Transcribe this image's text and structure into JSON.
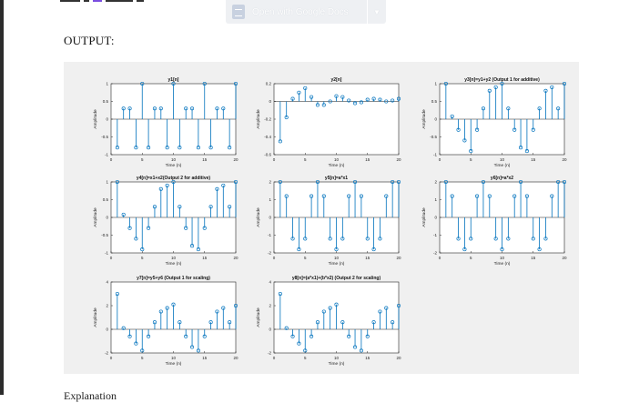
{
  "toolbar": {
    "open_with_label": "Open with Google Docs",
    "docs_icon": "docs-icon",
    "dropdown_icon": "chevron-down-icon"
  },
  "page": {
    "output_heading": "OUTPUT:",
    "bottom_text": "Explanation"
  },
  "chart_data": [
    {
      "type": "stem",
      "title": "y1[n]",
      "xlabel": "Time (n)",
      "ylabel": "Amplitude",
      "xlim": [
        0,
        20
      ],
      "ylim": [
        -1,
        1
      ],
      "xticks": [
        0,
        5,
        10,
        15,
        20
      ],
      "yticks": [
        -1,
        -0.5,
        0,
        0.5,
        1
      ],
      "ytick_labels": [
        "-1",
        "-0.5",
        "0",
        "0.5",
        "1"
      ],
      "x": [
        1,
        2,
        3,
        4,
        5,
        6,
        7,
        8,
        9,
        10,
        11,
        12,
        13,
        14,
        15,
        16,
        17,
        18,
        19,
        20
      ],
      "values": [
        -0.8,
        0.3,
        0.3,
        -0.8,
        1,
        -0.8,
        0.3,
        0.3,
        -0.8,
        1,
        -0.8,
        0.3,
        0.3,
        -0.8,
        1,
        -0.8,
        0.3,
        0.3,
        -0.8,
        1
      ]
    },
    {
      "type": "stem",
      "title": "y2[n]",
      "xlabel": "Time (n)",
      "ylabel": "Amplitude",
      "xlim": [
        0,
        20
      ],
      "ylim": [
        -0.6,
        0.2
      ],
      "xticks": [
        0,
        5,
        10,
        15,
        20
      ],
      "yticks": [
        -0.6,
        -0.4,
        -0.2,
        0,
        0.2
      ],
      "ytick_labels": [
        "-0.6",
        "-0.4",
        "-0.2",
        "0",
        "0.2"
      ],
      "x": [
        1,
        2,
        3,
        4,
        5,
        6,
        7,
        8,
        9,
        10,
        11,
        12,
        13,
        14,
        15,
        16,
        17,
        18,
        19,
        20
      ],
      "values": [
        -0.45,
        -0.18,
        0.03,
        0.1,
        0.15,
        0.05,
        -0.04,
        -0.04,
        0.0,
        0.06,
        0.05,
        0.01,
        -0.02,
        -0.01,
        0.02,
        0.03,
        0.02,
        0.0,
        0.01,
        0.03
      ]
    },
    {
      "type": "stem",
      "title": "y3[n]=y1+y2 (Output 1 for additive)",
      "xlabel": "Time (n)",
      "ylabel": "Amplitude",
      "xlim": [
        0,
        20
      ],
      "ylim": [
        -1,
        1
      ],
      "xticks": [
        0,
        5,
        10,
        15,
        20
      ],
      "yticks": [
        -1,
        -0.5,
        0,
        0.5,
        1
      ],
      "ytick_labels": [
        "-1",
        "-0.5",
        "0",
        "0.5",
        "1"
      ],
      "x": [
        1,
        2,
        3,
        4,
        5,
        6,
        7,
        8,
        9,
        10,
        11,
        12,
        13,
        14,
        15,
        16,
        17,
        18,
        19,
        20
      ],
      "values": [
        1,
        0.08,
        -0.3,
        -0.6,
        -0.9,
        -0.3,
        0.3,
        0.8,
        0.9,
        1,
        0.3,
        -0.3,
        -0.8,
        -0.9,
        -0.3,
        0.3,
        0.8,
        0.9,
        0.3,
        1
      ]
    },
    {
      "type": "stem",
      "title": "y4[n]=x1+x2(Output 2 for additive)",
      "xlabel": "Time (n)",
      "ylabel": "Amplitude",
      "xlim": [
        0,
        20
      ],
      "ylim": [
        -1,
        1
      ],
      "xticks": [
        0,
        5,
        10,
        15,
        20
      ],
      "yticks": [
        -1,
        -0.5,
        0,
        0.5,
        1
      ],
      "ytick_labels": [
        "-1",
        "-0.5",
        "0",
        "0.5",
        "1"
      ],
      "x": [
        1,
        2,
        3,
        4,
        5,
        6,
        7,
        8,
        9,
        10,
        11,
        12,
        13,
        14,
        15,
        16,
        17,
        18,
        19,
        20
      ],
      "values": [
        1,
        0.08,
        -0.3,
        -0.6,
        -0.9,
        -0.3,
        0.3,
        0.8,
        0.9,
        1,
        0.3,
        -0.3,
        -0.8,
        -0.9,
        -0.3,
        0.3,
        0.8,
        0.9,
        0.3,
        1
      ]
    },
    {
      "type": "stem",
      "title": "y5[n]=a*x1",
      "xlabel": "Time (n)",
      "ylabel": "Amplitude",
      "xlim": [
        0,
        20
      ],
      "ylim": [
        -2,
        2
      ],
      "xticks": [
        0,
        5,
        10,
        15,
        20
      ],
      "yticks": [
        -2,
        -1,
        0,
        1,
        2
      ],
      "ytick_labels": [
        "-2",
        "-1",
        "0",
        "1",
        "2"
      ],
      "x": [
        1,
        2,
        3,
        4,
        5,
        6,
        7,
        8,
        9,
        10,
        11,
        12,
        13,
        14,
        15,
        16,
        17,
        18,
        19,
        20
      ],
      "values": [
        2,
        1.2,
        -1.2,
        -1.8,
        -1.2,
        1.2,
        2,
        1.2,
        -1.2,
        -1.8,
        -1.2,
        1.2,
        2,
        1.2,
        -1.2,
        -1.8,
        -1.2,
        1.2,
        2,
        2
      ]
    },
    {
      "type": "stem",
      "title": "y6[n]=a*x2",
      "xlabel": "Time (n)",
      "ylabel": "Amplitude",
      "xlim": [
        0,
        20
      ],
      "ylim": [
        -2,
        2
      ],
      "xticks": [
        0,
        5,
        10,
        15,
        20
      ],
      "yticks": [
        -2,
        -1,
        0,
        1,
        2
      ],
      "ytick_labels": [
        "-2",
        "-1",
        "0",
        "1",
        "2"
      ],
      "x": [
        1,
        2,
        3,
        4,
        5,
        6,
        7,
        8,
        9,
        10,
        11,
        12,
        13,
        14,
        15,
        16,
        17,
        18,
        19,
        20
      ],
      "values": [
        2,
        1.2,
        -1.2,
        -1.8,
        -1.2,
        1.2,
        2,
        1.2,
        -1.2,
        -1.8,
        -1.2,
        1.2,
        2,
        1.2,
        -1.2,
        -1.8,
        -1.2,
        1.2,
        2,
        2
      ]
    },
    {
      "type": "stem",
      "title": "y7[n]=y5+y6 (Output 1 for scaling)",
      "xlabel": "Time (n)",
      "ylabel": "Amplitude",
      "xlim": [
        0,
        20
      ],
      "ylim": [
        -2,
        4
      ],
      "xticks": [
        0,
        5,
        10,
        15,
        20
      ],
      "yticks": [
        -2,
        0,
        2,
        4
      ],
      "ytick_labels": [
        "-2",
        "0",
        "2",
        "4"
      ],
      "x": [
        1,
        2,
        3,
        4,
        5,
        6,
        7,
        8,
        9,
        10,
        11,
        12,
        13,
        14,
        15,
        16,
        17,
        18,
        19,
        20
      ],
      "values": [
        3,
        0.1,
        -0.6,
        -1.2,
        -1.8,
        -0.6,
        0.6,
        1.5,
        1.8,
        2.1,
        0.6,
        -0.6,
        -1.5,
        -1.8,
        -0.6,
        0.6,
        1.5,
        1.8,
        0.6,
        2
      ]
    },
    {
      "type": "stem",
      "title": "y8[n]=(a*x1)+(b*x2) (Output 2 for scaling)",
      "xlabel": "Time (n)",
      "ylabel": "Amplitude",
      "xlim": [
        0,
        20
      ],
      "ylim": [
        -2,
        4
      ],
      "xticks": [
        0,
        5,
        10,
        15,
        20
      ],
      "yticks": [
        -2,
        0,
        2,
        4
      ],
      "ytick_labels": [
        "-2",
        "0",
        "2",
        "4"
      ],
      "x": [
        1,
        2,
        3,
        4,
        5,
        6,
        7,
        8,
        9,
        10,
        11,
        12,
        13,
        14,
        15,
        16,
        17,
        18,
        19,
        20
      ],
      "values": [
        3,
        0.1,
        -0.6,
        -1.2,
        -1.8,
        -0.6,
        0.6,
        1.5,
        1.8,
        2.1,
        0.6,
        -0.6,
        -1.5,
        -1.8,
        -0.6,
        0.6,
        1.5,
        1.8,
        0.6,
        2
      ]
    }
  ],
  "colors": {
    "stem": "#0072bd",
    "axes_bg": "#ffffff",
    "figure_bg": "#f0f0f0",
    "axis": "#262626"
  }
}
